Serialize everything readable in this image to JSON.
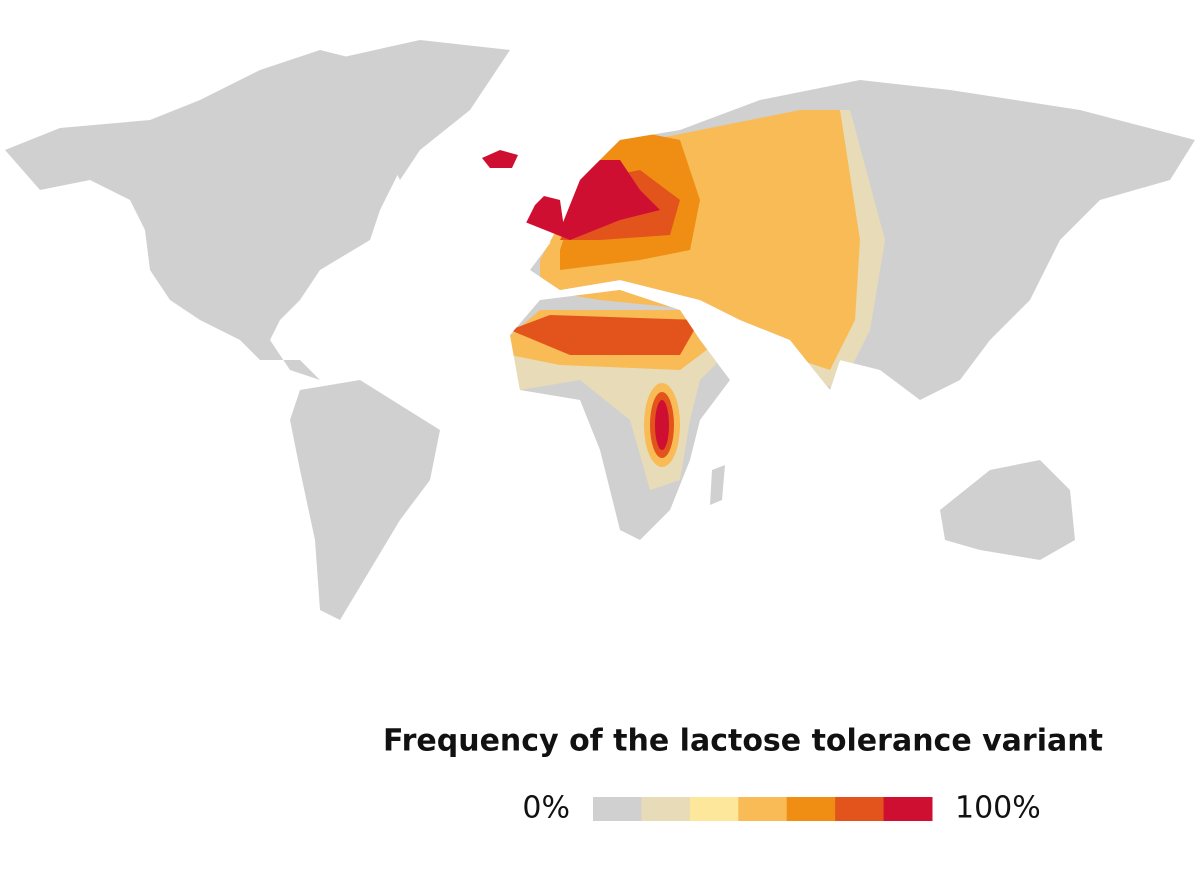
{
  "legend": {
    "title": "Frequency of the lactose tolerance variant",
    "min_label": "0%",
    "max_label": "100%",
    "colors": [
      "#d0d0d0",
      "#e8dbb8",
      "#fde79a",
      "#f8bb55",
      "#ef8e13",
      "#e2541c",
      "#cf0f32"
    ]
  }
}
